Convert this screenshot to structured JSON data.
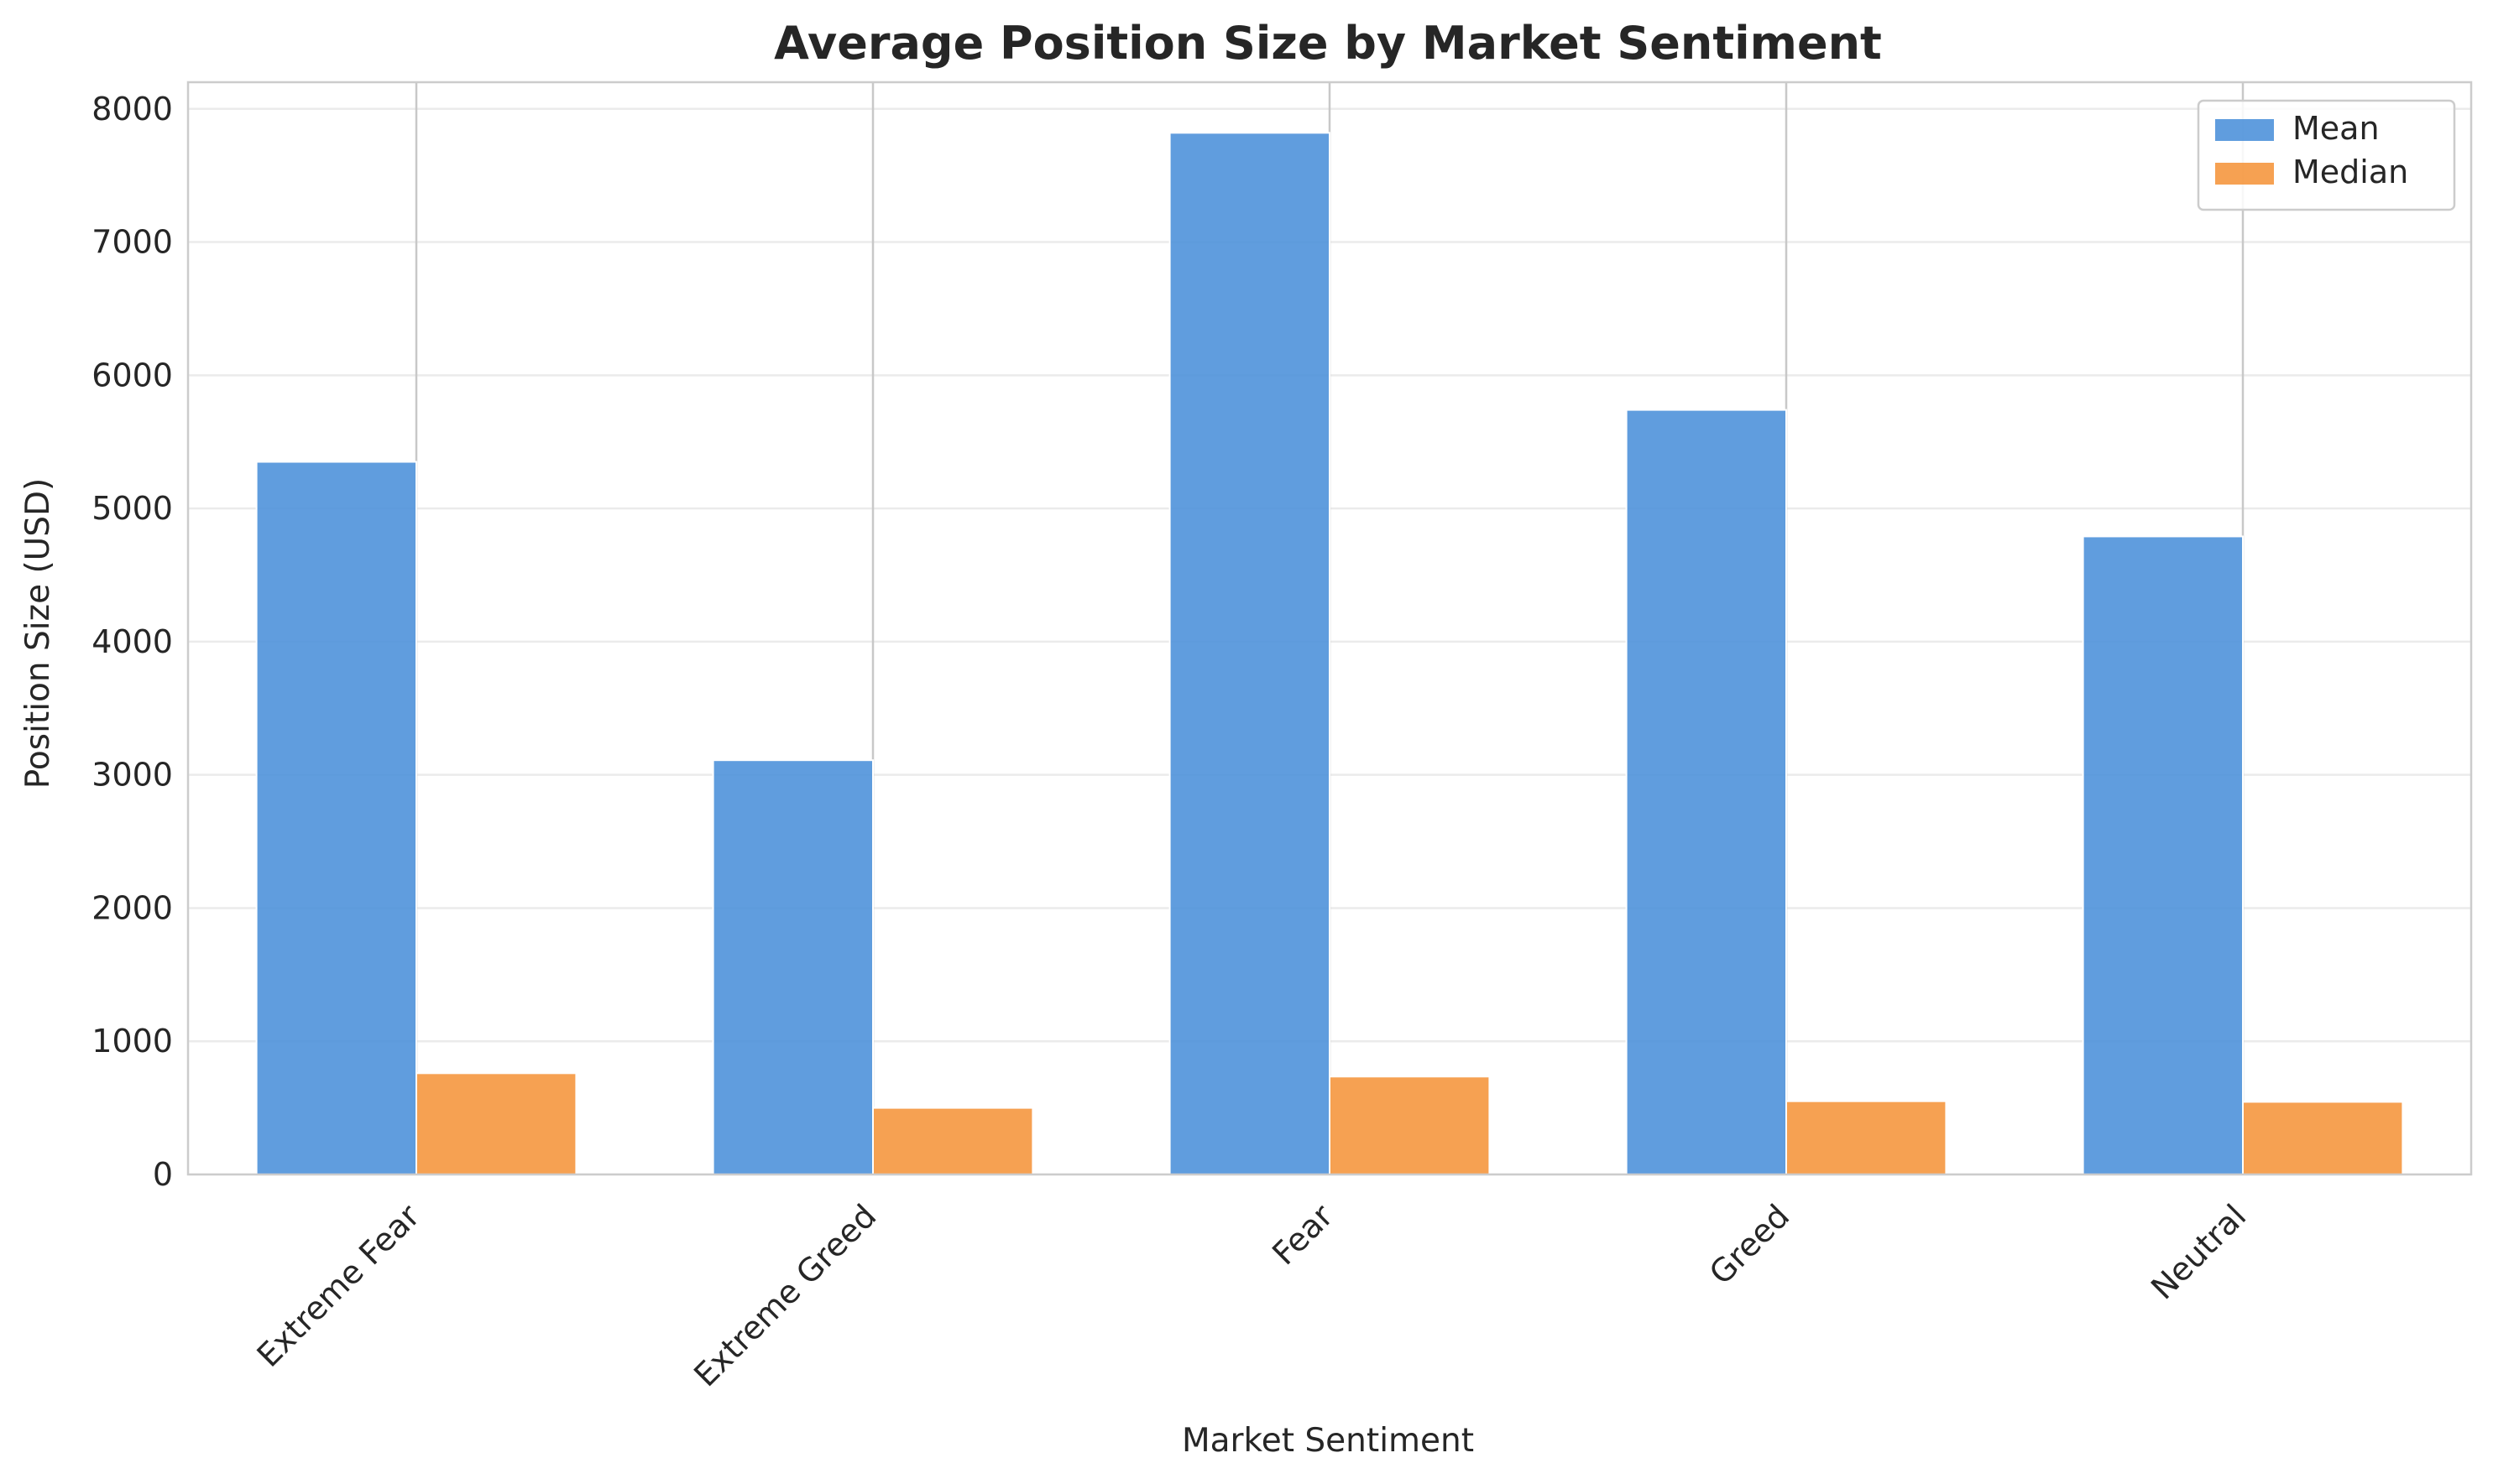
{
  "chart_data": {
    "type": "bar",
    "title": "Average Position Size by Market Sentiment",
    "xlabel": "Market Sentiment",
    "ylabel": "Position Size (USD)",
    "categories": [
      "Extreme Fear",
      "Extreme Greed",
      "Fear",
      "Greed",
      "Neutral"
    ],
    "series": [
      {
        "name": "Mean",
        "color": "#4a90d9",
        "values": [
          5350,
          3110,
          7820,
          5740,
          4790
        ]
      },
      {
        "name": "Median",
        "color": "#f5943a",
        "values": [
          760,
          500,
          735,
          550,
          545
        ]
      }
    ],
    "yticks": [
      0,
      1000,
      2000,
      3000,
      4000,
      5000,
      6000,
      7000,
      8000
    ],
    "ytick_labels": [
      "0",
      "1000",
      "2000",
      "3000",
      "4000",
      "5000",
      "6000",
      "7000",
      "8000"
    ],
    "ylim": [
      0,
      8200
    ],
    "grid": true,
    "legend_position": "top-right"
  }
}
